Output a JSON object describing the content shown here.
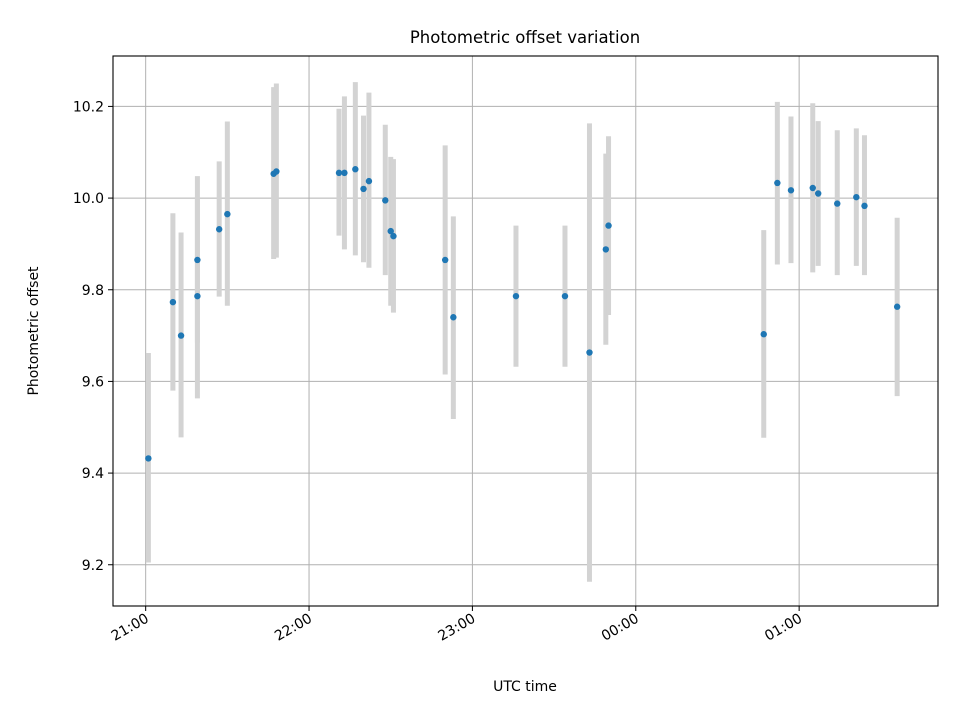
{
  "chart_data": {
    "type": "scatter",
    "title": "Photometric offset variation",
    "xlabel": "UTC time",
    "ylabel": "Photometric offset",
    "x_unit": "UTC time (HH:MM)",
    "xlim": [
      "20:48",
      "25:51"
    ],
    "ylim": [
      9.11,
      10.31
    ],
    "x_ticks": [
      {
        "t": "21:00",
        "label": "21:00"
      },
      {
        "t": "22:00",
        "label": "22:00"
      },
      {
        "t": "23:00",
        "label": "23:00"
      },
      {
        "t": "24:00",
        "label": "00:00"
      },
      {
        "t": "25:00",
        "label": "01:00"
      }
    ],
    "y_ticks": [
      9.2,
      9.4,
      9.6,
      9.8,
      10.0,
      10.2
    ],
    "grid": true,
    "colors": {
      "point": "#1f77b4",
      "errorbar": "#d3d3d3",
      "grid": "#b0b0b0"
    },
    "points": [
      {
        "t": "21:01",
        "y": 9.432,
        "ylow": 9.205,
        "yhigh": 9.662
      },
      {
        "t": "21:10",
        "y": 9.773,
        "ylow": 9.58,
        "yhigh": 9.967
      },
      {
        "t": "21:13",
        "y": 9.7,
        "ylow": 9.478,
        "yhigh": 9.925
      },
      {
        "t": "21:19",
        "y": 9.786,
        "ylow": 9.563,
        "yhigh": 10.0
      },
      {
        "t": "21:19",
        "y": 9.865,
        "ylow": 9.685,
        "yhigh": 10.048
      },
      {
        "t": "21:27",
        "y": 9.932,
        "ylow": 9.785,
        "yhigh": 10.08
      },
      {
        "t": "21:30",
        "y": 9.965,
        "ylow": 9.765,
        "yhigh": 10.167
      },
      {
        "t": "21:47",
        "y": 10.053,
        "ylow": 9.867,
        "yhigh": 10.242
      },
      {
        "t": "21:48",
        "y": 10.058,
        "ylow": 9.87,
        "yhigh": 10.25
      },
      {
        "t": "22:11",
        "y": 10.055,
        "ylow": 9.918,
        "yhigh": 10.195
      },
      {
        "t": "22:13",
        "y": 10.055,
        "ylow": 9.888,
        "yhigh": 10.222
      },
      {
        "t": "22:17",
        "y": 10.063,
        "ylow": 9.875,
        "yhigh": 10.253
      },
      {
        "t": "22:20",
        "y": 10.02,
        "ylow": 9.86,
        "yhigh": 10.18
      },
      {
        "t": "22:22",
        "y": 10.037,
        "ylow": 9.848,
        "yhigh": 10.23
      },
      {
        "t": "22:28",
        "y": 9.995,
        "ylow": 9.832,
        "yhigh": 10.16
      },
      {
        "t": "22:30",
        "y": 9.928,
        "ylow": 9.765,
        "yhigh": 10.09
      },
      {
        "t": "22:31",
        "y": 9.917,
        "ylow": 9.75,
        "yhigh": 10.085
      },
      {
        "t": "22:50",
        "y": 9.865,
        "ylow": 9.615,
        "yhigh": 10.115
      },
      {
        "t": "22:53",
        "y": 9.74,
        "ylow": 9.518,
        "yhigh": 9.96
      },
      {
        "t": "23:16",
        "y": 9.786,
        "ylow": 9.632,
        "yhigh": 9.94
      },
      {
        "t": "23:34",
        "y": 9.786,
        "ylow": 9.632,
        "yhigh": 9.94
      },
      {
        "t": "23:43",
        "y": 9.663,
        "ylow": 9.163,
        "yhigh": 10.163
      },
      {
        "t": "23:49",
        "y": 9.888,
        "ylow": 9.68,
        "yhigh": 10.097
      },
      {
        "t": "23:50",
        "y": 9.94,
        "ylow": 9.745,
        "yhigh": 10.135
      },
      {
        "t": "24:47",
        "y": 9.703,
        "ylow": 9.477,
        "yhigh": 9.93
      },
      {
        "t": "24:52",
        "y": 10.033,
        "ylow": 9.855,
        "yhigh": 10.21
      },
      {
        "t": "24:57",
        "y": 10.017,
        "ylow": 9.858,
        "yhigh": 10.178
      },
      {
        "t": "25:05",
        "y": 10.022,
        "ylow": 9.838,
        "yhigh": 10.207
      },
      {
        "t": "25:07",
        "y": 10.01,
        "ylow": 9.852,
        "yhigh": 10.168
      },
      {
        "t": "25:14",
        "y": 9.988,
        "ylow": 9.832,
        "yhigh": 10.148
      },
      {
        "t": "25:21",
        "y": 10.002,
        "ylow": 9.852,
        "yhigh": 10.152
      },
      {
        "t": "25:24",
        "y": 9.983,
        "ylow": 9.832,
        "yhigh": 10.137
      },
      {
        "t": "25:36",
        "y": 9.763,
        "ylow": 9.568,
        "yhigh": 9.957
      }
    ]
  }
}
